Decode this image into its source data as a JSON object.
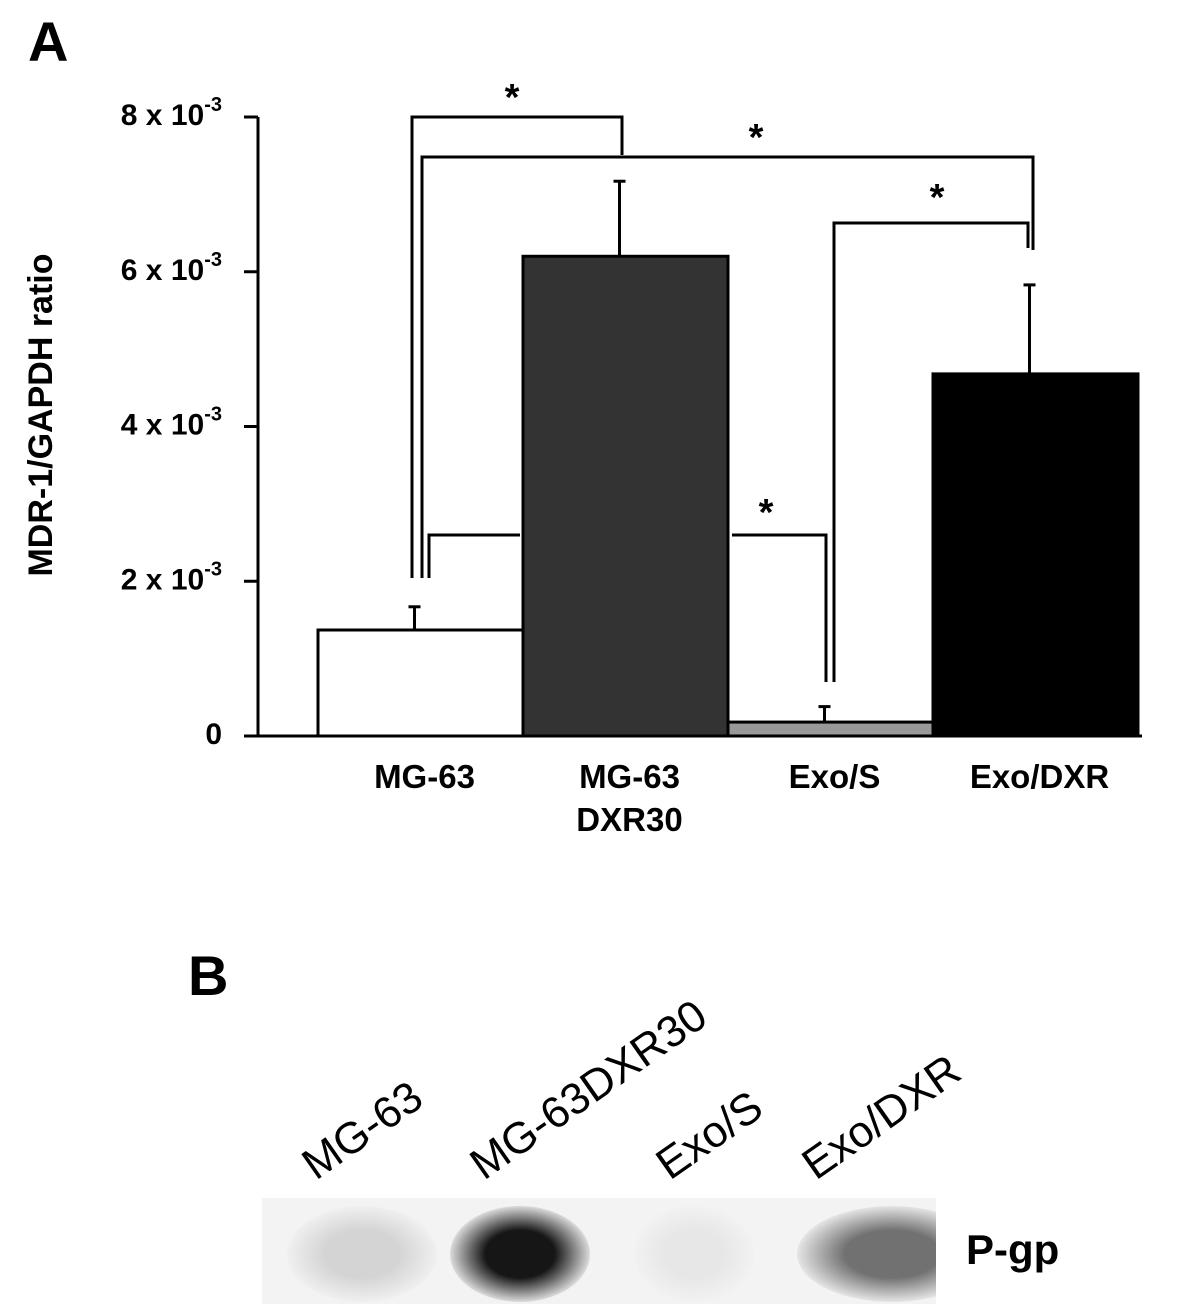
{
  "panel_a": {
    "label": "A"
  },
  "panel_b": {
    "label": "B"
  },
  "chart_data": {
    "type": "bar",
    "ylabel": "MDR-1/GAPDH ratio",
    "ylim": [
      0,
      0.008
    ],
    "yticks": [
      {
        "value": 0,
        "label": "0",
        "exp": ""
      },
      {
        "value": 0.002,
        "label": "2 x 10",
        "exp": "-3"
      },
      {
        "value": 0.004,
        "label": "4 x 10",
        "exp": "-3"
      },
      {
        "value": 0.006,
        "label": "6 x 10",
        "exp": "-3"
      },
      {
        "value": 0.008,
        "label": "8 x 10",
        "exp": "-3"
      }
    ],
    "categories": [
      {
        "lines": [
          "MG-63"
        ]
      },
      {
        "lines": [
          "MG-63",
          "DXR30"
        ]
      },
      {
        "lines": [
          "Exo/S"
        ]
      },
      {
        "lines": [
          "Exo/DXR"
        ]
      }
    ],
    "values": [
      0.00137,
      0.0062,
      0.00018,
      0.00468
    ],
    "errors": [
      0.0003,
      0.00097,
      0.0002,
      0.00115
    ],
    "colors": [
      "#ffffff",
      "#333333",
      "#999999",
      "#000000"
    ],
    "significance": [
      {
        "from": 0,
        "to": 1,
        "label": "*"
      },
      {
        "from": 0,
        "to": 3,
        "label": "*"
      },
      {
        "from": 2,
        "to": 3,
        "label": "*"
      },
      {
        "from": 0,
        "to": 2,
        "label": "*"
      }
    ]
  },
  "western_blot": {
    "lanes": [
      "MG-63",
      "MG-63DXR30",
      "Exo/S",
      "Exo/DXR"
    ],
    "band_label": "P-gp",
    "band_intensity": [
      0.12,
      0.95,
      0.04,
      0.55
    ]
  }
}
